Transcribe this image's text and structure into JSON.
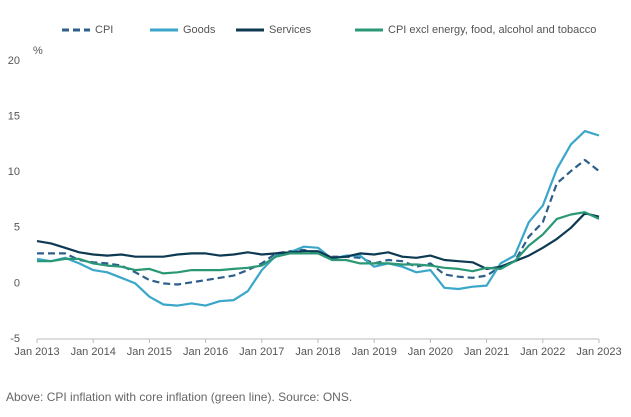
{
  "chart_data": {
    "type": "line",
    "y_label": "%",
    "caption": "Above: CPI inflation with core inflation (green line). Source: ONS.",
    "x": [
      2013,
      2013.25,
      2013.5,
      2013.75,
      2014,
      2014.25,
      2014.5,
      2014.75,
      2015,
      2015.25,
      2015.5,
      2015.75,
      2016,
      2016.25,
      2016.5,
      2016.75,
      2017,
      2017.25,
      2017.5,
      2017.75,
      2018,
      2018.25,
      2018.5,
      2018.75,
      2019,
      2019.25,
      2019.5,
      2019.75,
      2020,
      2020.25,
      2020.5,
      2020.75,
      2021,
      2021.25,
      2021.5,
      2021.75,
      2022,
      2022.25,
      2022.5,
      2022.75,
      2023
    ],
    "series": [
      {
        "name": "CPI",
        "color": "#2e5f8a",
        "style": "dashed",
        "values": [
          2.7,
          2.7,
          2.7,
          2.1,
          1.9,
          1.8,
          1.6,
          1.0,
          0.3,
          0.0,
          -0.1,
          0.1,
          0.3,
          0.5,
          0.7,
          1.2,
          1.8,
          2.7,
          2.9,
          3.0,
          2.7,
          2.4,
          2.4,
          2.3,
          1.8,
          2.1,
          2.0,
          1.5,
          1.8,
          0.8,
          0.6,
          0.5,
          0.7,
          1.5,
          2.0,
          4.2,
          5.5,
          9.0,
          10.1,
          11.1,
          10.1
        ]
      },
      {
        "name": "Goods",
        "color": "#3aa6c9",
        "style": "solid",
        "values": [
          2.2,
          2.0,
          2.3,
          1.8,
          1.2,
          1.0,
          0.5,
          0.0,
          -1.2,
          -1.9,
          -2.0,
          -1.8,
          -2.0,
          -1.6,
          -1.5,
          -0.7,
          1.2,
          2.5,
          2.8,
          3.3,
          3.2,
          2.2,
          2.5,
          2.5,
          1.5,
          1.8,
          1.5,
          1.0,
          1.2,
          -0.4,
          -0.5,
          -0.3,
          -0.2,
          1.8,
          2.5,
          5.5,
          7.0,
          10.3,
          12.5,
          13.7,
          13.3
        ]
      },
      {
        "name": "Services",
        "color": "#0d3a52",
        "style": "solid",
        "values": [
          3.8,
          3.6,
          3.2,
          2.8,
          2.6,
          2.5,
          2.6,
          2.4,
          2.4,
          2.4,
          2.6,
          2.7,
          2.7,
          2.5,
          2.6,
          2.8,
          2.6,
          2.7,
          2.8,
          2.9,
          2.9,
          2.3,
          2.4,
          2.7,
          2.6,
          2.8,
          2.4,
          2.3,
          2.5,
          2.1,
          2.0,
          1.9,
          1.3,
          1.5,
          2.0,
          2.5,
          3.2,
          4.0,
          5.0,
          6.3,
          6.0
        ]
      },
      {
        "name": "CPI excl energy, food, alcohol and tobacco",
        "color": "#2a9775",
        "style": "solid",
        "values": [
          2.0,
          2.0,
          2.2,
          2.2,
          1.8,
          1.6,
          1.5,
          1.2,
          1.3,
          0.9,
          1.0,
          1.2,
          1.2,
          1.2,
          1.3,
          1.4,
          1.6,
          2.4,
          2.7,
          2.7,
          2.7,
          2.1,
          2.1,
          1.8,
          1.8,
          1.8,
          1.7,
          1.7,
          1.6,
          1.4,
          1.3,
          1.1,
          1.4,
          1.3,
          2.0,
          3.4,
          4.4,
          5.8,
          6.2,
          6.4,
          5.8
        ]
      }
    ],
    "xlim": [
      2013,
      2023
    ],
    "xticks": [
      {
        "value": 2013,
        "label": "Jan 2013"
      },
      {
        "value": 2014,
        "label": "Jan 2014"
      },
      {
        "value": 2015,
        "label": "Jan 2015"
      },
      {
        "value": 2016,
        "label": "Jan 2016"
      },
      {
        "value": 2017,
        "label": "Jan 2017"
      },
      {
        "value": 2018,
        "label": "Jan 2018"
      },
      {
        "value": 2019,
        "label": "Jan 2019"
      },
      {
        "value": 2020,
        "label": "Jan 2020"
      },
      {
        "value": 2021,
        "label": "Jan 2021"
      },
      {
        "value": 2022,
        "label": "Jan 2022"
      },
      {
        "value": 2023,
        "label": "Jan 2023"
      }
    ],
    "ylim": [
      -5,
      20
    ],
    "yticks": [
      -5,
      0,
      5,
      10,
      15,
      20
    ],
    "grid": false
  }
}
